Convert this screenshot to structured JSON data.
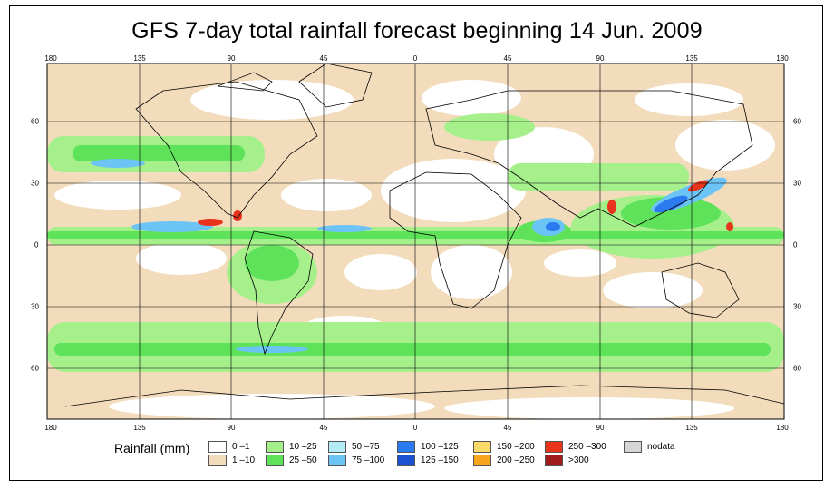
{
  "title": "GFS 7-day total rainfall forecast beginning 14 Jun. 2009",
  "lon_ticks": [
    "180",
    "135",
    "90",
    "45",
    "0",
    "45",
    "90",
    "135",
    "180"
  ],
  "lat_ticks": [
    "60",
    "30",
    "0",
    "30",
    "60"
  ],
  "legend": {
    "title": "Rainfall (mm)",
    "items": [
      {
        "label": "0 –1",
        "color": "#ffffff"
      },
      {
        "label": "1 –10",
        "color": "#f3dcbc"
      },
      {
        "label": "10 –25",
        "color": "#a6f08c"
      },
      {
        "label": "25 –50",
        "color": "#5ee25a"
      },
      {
        "label": "50 –75",
        "color": "#b4ecf6"
      },
      {
        "label": "75 –100",
        "color": "#6cc4f6"
      },
      {
        "label": "100 –125",
        "color": "#2c7af0"
      },
      {
        "label": "125 –150",
        "color": "#1c52d2"
      },
      {
        "label": "150 –200",
        "color": "#fcda6a"
      },
      {
        "label": "200 –250",
        "color": "#f8a41c"
      },
      {
        "label": "250 –300",
        "color": "#e8341c"
      },
      {
        "label": ">300",
        "color": "#a01c1c"
      },
      {
        "label": "nodata",
        "color": "#d6d6d6"
      }
    ]
  }
}
